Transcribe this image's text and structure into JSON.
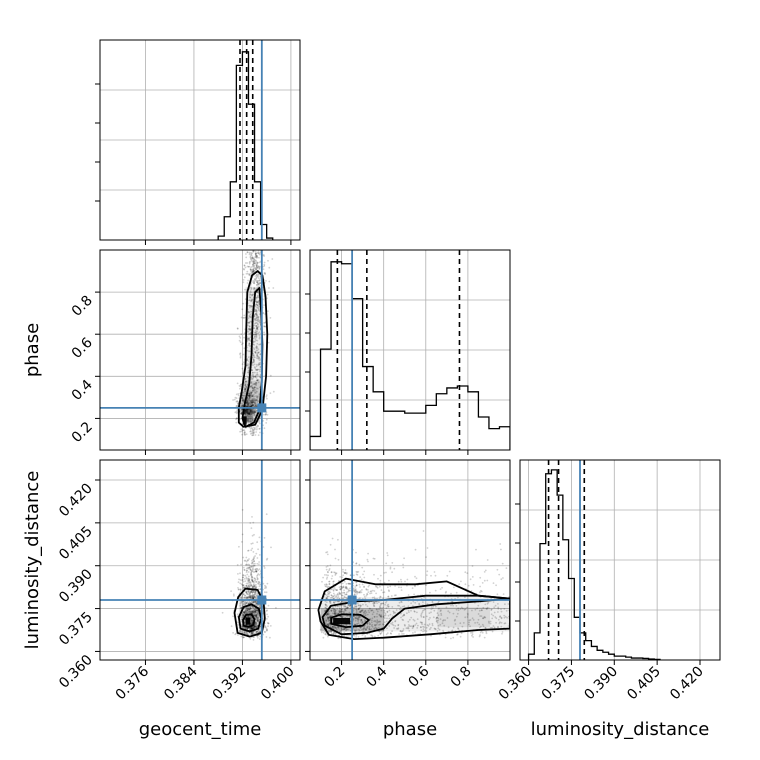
{
  "chart_data": {
    "type": "corner",
    "truth_color": "#4682b4",
    "grid": true,
    "parameters": [
      "geocent_time",
      "phase",
      "luminosity_distance"
    ],
    "truths": {
      "geocent_time": 0.3952,
      "phase": 0.25,
      "luminosity_distance": 0.378
    },
    "axis_labels": {
      "geocent_time": "geocent_time",
      "phase": "phase",
      "luminosity_distance": "luminosity_distance"
    },
    "ranges": {
      "geocent_time": [
        0.3685,
        0.4015
      ],
      "phase": [
        0.05,
        1.0
      ],
      "luminosity_distance": [
        0.357,
        0.427
      ]
    },
    "ticks": {
      "geocent_time": [
        0.376,
        0.384,
        0.392,
        0.4
      ],
      "phase": [
        0.2,
        0.4,
        0.6,
        0.8
      ],
      "luminosity_distance": [
        0.36,
        0.375,
        0.39,
        0.405,
        0.42
      ]
    },
    "tick_labels": {
      "geocent_time": [
        "0.376",
        "0.384",
        "0.392",
        "0.400"
      ],
      "phase": [
        "0.2",
        "0.4",
        "0.6",
        "0.8"
      ],
      "luminosity_distance": [
        "0.360",
        "0.375",
        "0.390",
        "0.405",
        "0.420"
      ]
    },
    "quantiles": {
      "geocent_time": [
        0.3916,
        0.3927,
        0.3937
      ],
      "phase": [
        0.18,
        0.32,
        0.76
      ],
      "luminosity_distance": [
        0.367,
        0.3705,
        0.3795
      ]
    },
    "histograms": {
      "geocent_time": {
        "edges": [
          0.388,
          0.389,
          0.39,
          0.391,
          0.392,
          0.393,
          0.394,
          0.395,
          0.396,
          0.397
        ],
        "counts": [
          0.02,
          0.12,
          0.3,
          0.9,
          0.97,
          0.7,
          0.3,
          0.08,
          0.01
        ]
      },
      "phase": {
        "edges": [
          0.05,
          0.1,
          0.15,
          0.2,
          0.25,
          0.3,
          0.35,
          0.4,
          0.45,
          0.5,
          0.55,
          0.6,
          0.65,
          0.7,
          0.75,
          0.8,
          0.85,
          0.9,
          0.95,
          1.0
        ],
        "counts": [
          0.07,
          0.52,
          0.97,
          0.96,
          0.78,
          0.43,
          0.3,
          0.2,
          0.2,
          0.19,
          0.19,
          0.23,
          0.29,
          0.32,
          0.33,
          0.3,
          0.17,
          0.11,
          0.12
        ]
      },
      "luminosity_distance": {
        "edges": [
          0.36,
          0.362,
          0.364,
          0.366,
          0.368,
          0.37,
          0.372,
          0.374,
          0.376,
          0.378,
          0.38,
          0.382,
          0.384,
          0.386,
          0.388,
          0.39,
          0.392,
          0.394,
          0.396,
          0.398,
          0.4,
          0.402,
          0.404,
          0.406
        ],
        "counts": [
          0.03,
          0.14,
          0.6,
          0.96,
          0.98,
          0.85,
          0.62,
          0.42,
          0.22,
          0.14,
          0.1,
          0.07,
          0.05,
          0.04,
          0.03,
          0.02,
          0.02,
          0.015,
          0.01,
          0.01,
          0.008,
          0.005,
          0.003
        ]
      }
    },
    "contours": {
      "phase_vs_geocent_time": {
        "x": "geocent_time",
        "y": "phase",
        "levels": [
          {
            "points": [
              [
                0.3922,
                0.16
              ],
              [
                0.3941,
                0.17
              ],
              [
                0.3953,
                0.24
              ],
              [
                0.3959,
                0.4
              ],
              [
                0.3961,
                0.6
              ],
              [
                0.3958,
                0.78
              ],
              [
                0.3953,
                0.88
              ],
              [
                0.3945,
                0.9
              ],
              [
                0.3936,
                0.88
              ],
              [
                0.3928,
                0.8
              ],
              [
                0.3926,
                0.6
              ],
              [
                0.3925,
                0.45
              ],
              [
                0.3919,
                0.33
              ],
              [
                0.3914,
                0.25
              ],
              [
                0.3914,
                0.18
              ]
            ]
          },
          {
            "points": [
              [
                0.3925,
                0.16
              ],
              [
                0.3939,
                0.18
              ],
              [
                0.3948,
                0.24
              ],
              [
                0.3952,
                0.38
              ],
              [
                0.3953,
                0.55
              ],
              [
                0.3951,
                0.7
              ],
              [
                0.3948,
                0.82
              ],
              [
                0.3941,
                0.8
              ],
              [
                0.3937,
                0.68
              ],
              [
                0.3935,
                0.5
              ],
              [
                0.3931,
                0.36
              ],
              [
                0.3924,
                0.27
              ],
              [
                0.392,
                0.2
              ]
            ]
          }
        ]
      },
      "luminosity_distance_vs_geocent_time": {
        "x": "geocent_time",
        "y": "luminosity_distance",
        "levels": [
          {
            "points": [
              [
                0.3912,
                0.3665
              ],
              [
                0.3932,
                0.3652
              ],
              [
                0.3952,
                0.3665
              ],
              [
                0.3957,
                0.3715
              ],
              [
                0.3955,
                0.3775
              ],
              [
                0.3945,
                0.3815
              ],
              [
                0.3925,
                0.382
              ],
              [
                0.3913,
                0.379
              ],
              [
                0.3907,
                0.3735
              ]
            ]
          },
          {
            "points": [
              [
                0.3917,
                0.368
              ],
              [
                0.3932,
                0.367
              ],
              [
                0.3946,
                0.368
              ],
              [
                0.3951,
                0.3715
              ],
              [
                0.3947,
                0.375
              ],
              [
                0.3935,
                0.3765
              ],
              [
                0.3922,
                0.3755
              ],
              [
                0.3914,
                0.372
              ]
            ]
          },
          {
            "points": [
              [
                0.3922,
                0.369
              ],
              [
                0.3931,
                0.3686
              ],
              [
                0.3938,
                0.3693
              ],
              [
                0.394,
                0.3712
              ],
              [
                0.3935,
                0.373
              ],
              [
                0.3926,
                0.3728
              ],
              [
                0.3921,
                0.371
              ]
            ]
          }
        ]
      },
      "luminosity_distance_vs_phase": {
        "x": "phase",
        "y": "luminosity_distance",
        "levels": [
          {
            "points": [
              [
                0.1,
                0.3705
              ],
              [
                0.14,
                0.3658
              ],
              [
                0.26,
                0.3643
              ],
              [
                0.4,
                0.3648
              ],
              [
                0.62,
                0.366
              ],
              [
                0.85,
                0.3675
              ],
              [
                1.0,
                0.368
              ],
              [
                1.0,
                0.3785
              ],
              [
                0.85,
                0.3795
              ],
              [
                0.7,
                0.3845
              ],
              [
                0.55,
                0.3835
              ],
              [
                0.36,
                0.3835
              ],
              [
                0.22,
                0.3855
              ],
              [
                0.12,
                0.381
              ],
              [
                0.09,
                0.3745
              ]
            ]
          },
          {
            "points": [
              [
                0.12,
                0.369
              ],
              [
                0.2,
                0.366
              ],
              [
                0.32,
                0.3665
              ],
              [
                0.4,
                0.368
              ],
              [
                0.44,
                0.3715
              ],
              [
                0.5,
                0.375
              ],
              [
                0.65,
                0.3765
              ],
              [
                0.85,
                0.3775
              ],
              [
                1.0,
                0.3785
              ],
              [
                0.85,
                0.3795
              ],
              [
                0.6,
                0.3795
              ],
              [
                0.4,
                0.378
              ],
              [
                0.27,
                0.3775
              ],
              [
                0.15,
                0.376
              ],
              [
                0.11,
                0.372
              ]
            ]
          },
          {
            "points": [
              [
                0.15,
                0.3697
              ],
              [
                0.22,
                0.3685
              ],
              [
                0.3,
                0.369
              ],
              [
                0.33,
                0.371
              ],
              [
                0.29,
                0.3728
              ],
              [
                0.2,
                0.373
              ],
              [
                0.15,
                0.3718
              ]
            ]
          }
        ]
      }
    },
    "scatter_seed": 7
  }
}
